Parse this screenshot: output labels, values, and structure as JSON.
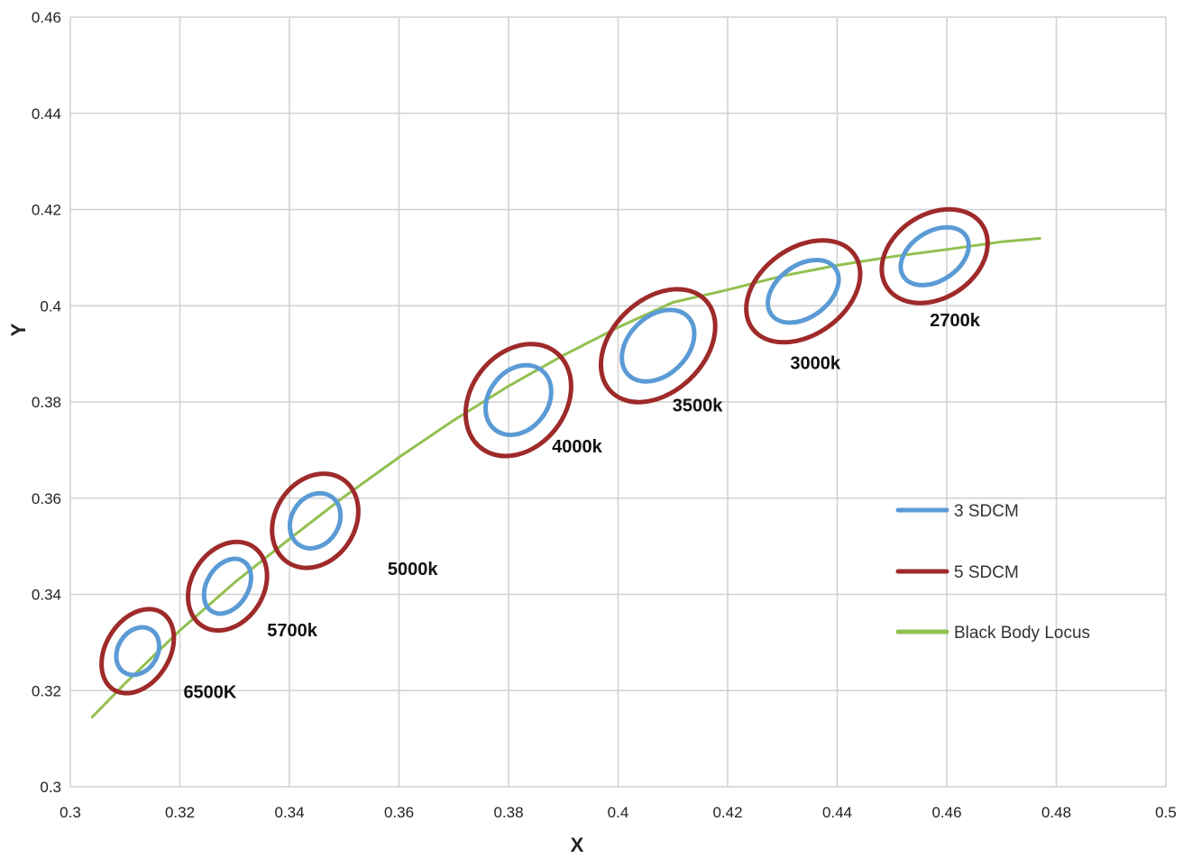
{
  "chart_data": {
    "type": "scatter",
    "title": "",
    "xlabel": "X",
    "ylabel": "Y",
    "xlim": [
      0.3,
      0.5
    ],
    "ylim": [
      0.3,
      0.46
    ],
    "x_ticks": [
      0.3,
      0.32,
      0.34,
      0.36,
      0.38,
      0.4,
      0.42,
      0.44,
      0.46,
      0.48,
      0.5
    ],
    "x_tick_labels": [
      "0.3",
      "0.32",
      "0.34",
      "0.36",
      "0.38",
      "0.4",
      "0.42",
      "0.44",
      "0.46",
      "0.48",
      "0.5"
    ],
    "y_ticks": [
      0.3,
      0.32,
      0.34,
      0.36,
      0.38,
      0.4,
      0.42,
      0.44,
      0.46
    ],
    "y_tick_labels": [
      "0.3",
      "0.32",
      "0.34",
      "0.36",
      "0.38",
      "0.4",
      "0.42",
      "0.44",
      "0.46"
    ],
    "grid": true,
    "legend_position": "right",
    "series": [
      {
        "name": "3 SDCM",
        "color": "#5b9bd5"
      },
      {
        "name": "5 SDCM",
        "color": "#9e2a2a"
      },
      {
        "name": "Black Body Locus",
        "color": "#92c050"
      }
    ],
    "locus": {
      "x": [
        0.304,
        0.31,
        0.32,
        0.33,
        0.34,
        0.35,
        0.36,
        0.37,
        0.38,
        0.39,
        0.4,
        0.41,
        0.42,
        0.43,
        0.44,
        0.45,
        0.46,
        0.47,
        0.477
      ],
      "y": [
        0.3145,
        0.3215,
        0.3325,
        0.3425,
        0.3515,
        0.3603,
        0.3685,
        0.3762,
        0.3833,
        0.3897,
        0.3955,
        0.4007,
        0.4033,
        0.4062,
        0.4084,
        0.4102,
        0.4117,
        0.4133,
        0.414
      ]
    },
    "ellipses": [
      {
        "label": "6500K",
        "cx": 0.3123,
        "cy": 0.3282,
        "inner_a": 0.0046,
        "inner_b": 0.0041,
        "outer_a": 0.0083,
        "outer_b": 0.0066,
        "angle_deg": 58,
        "label_x": 0.3255,
        "label_y": 0.3185
      },
      {
        "label": "5700k",
        "cx": 0.3287,
        "cy": 0.3417,
        "inner_a": 0.0054,
        "inner_b": 0.0043,
        "outer_a": 0.0086,
        "outer_b": 0.0075,
        "angle_deg": 58,
        "label_x": 0.3405,
        "label_y": 0.3313
      },
      {
        "label": "5000k",
        "cx": 0.3447,
        "cy": 0.3553,
        "inner_a": 0.0053,
        "inner_b": 0.0049,
        "outer_a": 0.0091,
        "outer_b": 0.0083,
        "angle_deg": 57,
        "label_x": 0.3625,
        "label_y": 0.344
      },
      {
        "label": "4000k",
        "cx": 0.3818,
        "cy": 0.3804,
        "inner_a": 0.0069,
        "inner_b": 0.0061,
        "outer_a": 0.0111,
        "outer_b": 0.0098,
        "angle_deg": 52,
        "label_x": 0.3925,
        "label_y": 0.3695
      },
      {
        "label": "3500k",
        "cx": 0.4073,
        "cy": 0.3917,
        "inner_a": 0.0076,
        "inner_b": 0.0061,
        "outer_a": 0.012,
        "outer_b": 0.0096,
        "angle_deg": 44,
        "label_x": 0.4145,
        "label_y": 0.378
      },
      {
        "label": "3000k",
        "cx": 0.4338,
        "cy": 0.403,
        "inner_a": 0.0072,
        "inner_b": 0.0054,
        "outer_a": 0.0115,
        "outer_b": 0.009,
        "angle_deg": 36,
        "label_x": 0.436,
        "label_y": 0.3868
      },
      {
        "label": "2700k",
        "cx": 0.4578,
        "cy": 0.4103,
        "inner_a": 0.0068,
        "inner_b": 0.0051,
        "outer_a": 0.0104,
        "outer_b": 0.0087,
        "angle_deg": 33,
        "label_x": 0.4615,
        "label_y": 0.3957
      }
    ]
  }
}
